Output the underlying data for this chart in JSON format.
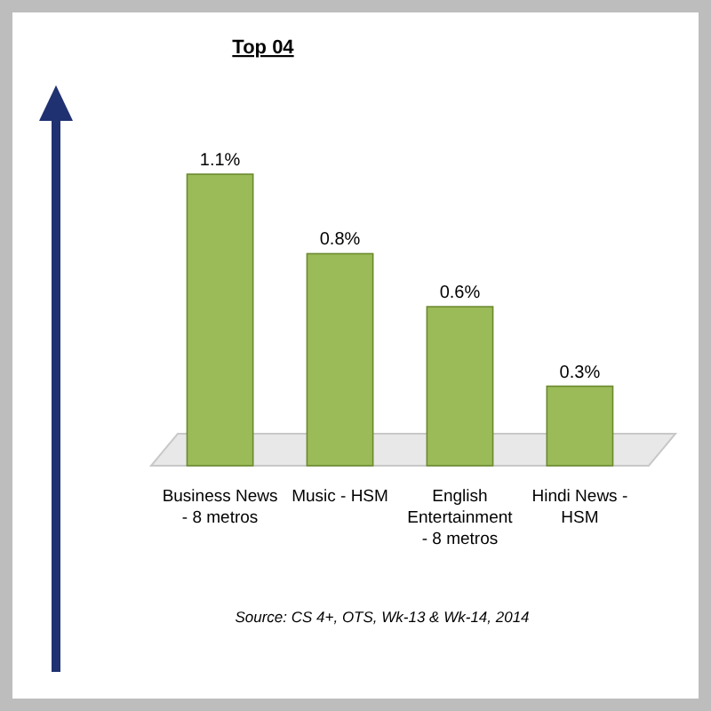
{
  "chart_data": {
    "type": "bar",
    "title": "Top 04",
    "categories": [
      "Business News - 8 metros",
      "Music - HSM",
      "English Entertainment - 8 metros",
      "Hindi News - HSM"
    ],
    "values": [
      1.1,
      0.8,
      0.6,
      0.3
    ],
    "color": "#9bbb59",
    "value_labels": [
      "1.1%",
      "0.8%",
      "0.6%",
      "0.3%"
    ],
    "tick_labels": "x",
    "annotations": [
      "Source: CS 4+, OTS, Wk-13 & Wk-14, 2014"
    ]
  }
}
